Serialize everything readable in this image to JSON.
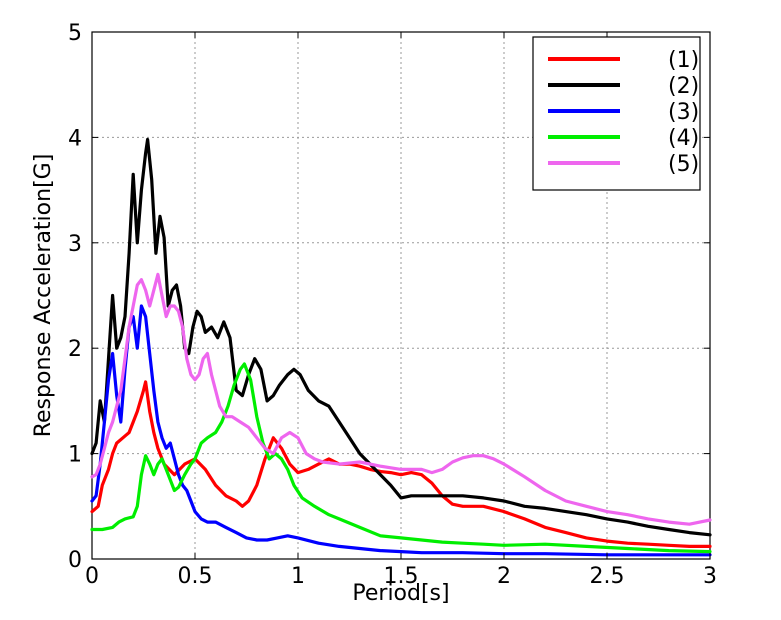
{
  "chart_data": {
    "type": "line",
    "title": "",
    "xlabel": "Period[s]",
    "ylabel": "Response Acceleration[G]",
    "xlim": [
      0,
      3
    ],
    "ylim": [
      0,
      5
    ],
    "xticks": [
      0,
      0.5,
      1,
      1.5,
      2,
      2.5,
      3
    ],
    "xtick_labels": [
      "0",
      "0.5",
      "1",
      "1.5",
      "2",
      "2.5",
      "3"
    ],
    "yticks": [
      0,
      1,
      2,
      3,
      4,
      5
    ],
    "ytick_labels": [
      "0",
      "1",
      "2",
      "3",
      "4",
      "5"
    ],
    "grid": true,
    "legend_position": "top-right",
    "series": [
      {
        "name": "(1)",
        "color": "#ff0000",
        "points": [
          [
            0,
            0.45
          ],
          [
            0.03,
            0.5
          ],
          [
            0.05,
            0.7
          ],
          [
            0.08,
            0.85
          ],
          [
            0.1,
            1.0
          ],
          [
            0.12,
            1.1
          ],
          [
            0.15,
            1.15
          ],
          [
            0.18,
            1.2
          ],
          [
            0.2,
            1.3
          ],
          [
            0.22,
            1.4
          ],
          [
            0.25,
            1.6
          ],
          [
            0.26,
            1.68
          ],
          [
            0.28,
            1.4
          ],
          [
            0.3,
            1.2
          ],
          [
            0.32,
            1.05
          ],
          [
            0.35,
            0.9
          ],
          [
            0.4,
            0.8
          ],
          [
            0.45,
            0.9
          ],
          [
            0.5,
            0.95
          ],
          [
            0.55,
            0.85
          ],
          [
            0.6,
            0.7
          ],
          [
            0.65,
            0.6
          ],
          [
            0.7,
            0.55
          ],
          [
            0.73,
            0.5
          ],
          [
            0.76,
            0.55
          ],
          [
            0.8,
            0.7
          ],
          [
            0.84,
            0.95
          ],
          [
            0.88,
            1.15
          ],
          [
            0.92,
            1.05
          ],
          [
            0.96,
            0.9
          ],
          [
            1.0,
            0.82
          ],
          [
            1.05,
            0.85
          ],
          [
            1.1,
            0.9
          ],
          [
            1.15,
            0.95
          ],
          [
            1.2,
            0.9
          ],
          [
            1.25,
            0.9
          ],
          [
            1.3,
            0.88
          ],
          [
            1.35,
            0.85
          ],
          [
            1.4,
            0.83
          ],
          [
            1.45,
            0.82
          ],
          [
            1.5,
            0.8
          ],
          [
            1.55,
            0.82
          ],
          [
            1.6,
            0.8
          ],
          [
            1.65,
            0.72
          ],
          [
            1.7,
            0.6
          ],
          [
            1.75,
            0.52
          ],
          [
            1.8,
            0.5
          ],
          [
            1.9,
            0.5
          ],
          [
            2.0,
            0.45
          ],
          [
            2.1,
            0.38
          ],
          [
            2.2,
            0.3
          ],
          [
            2.3,
            0.25
          ],
          [
            2.4,
            0.2
          ],
          [
            2.5,
            0.17
          ],
          [
            2.6,
            0.15
          ],
          [
            2.7,
            0.14
          ],
          [
            2.8,
            0.13
          ],
          [
            2.9,
            0.12
          ],
          [
            3.0,
            0.12
          ]
        ]
      },
      {
        "name": "(2)",
        "color": "#000000",
        "points": [
          [
            0,
            1.0
          ],
          [
            0.02,
            1.1
          ],
          [
            0.04,
            1.5
          ],
          [
            0.06,
            1.3
          ],
          [
            0.08,
            1.9
          ],
          [
            0.1,
            2.5
          ],
          [
            0.12,
            2.0
          ],
          [
            0.14,
            2.1
          ],
          [
            0.16,
            2.3
          ],
          [
            0.18,
            2.9
          ],
          [
            0.2,
            3.65
          ],
          [
            0.22,
            3.0
          ],
          [
            0.24,
            3.5
          ],
          [
            0.26,
            3.85
          ],
          [
            0.27,
            3.98
          ],
          [
            0.29,
            3.6
          ],
          [
            0.31,
            2.9
          ],
          [
            0.33,
            3.25
          ],
          [
            0.35,
            3.05
          ],
          [
            0.37,
            2.4
          ],
          [
            0.39,
            2.55
          ],
          [
            0.41,
            2.6
          ],
          [
            0.43,
            2.4
          ],
          [
            0.45,
            2.0
          ],
          [
            0.47,
            1.95
          ],
          [
            0.49,
            2.2
          ],
          [
            0.51,
            2.35
          ],
          [
            0.53,
            2.3
          ],
          [
            0.55,
            2.15
          ],
          [
            0.58,
            2.2
          ],
          [
            0.61,
            2.1
          ],
          [
            0.64,
            2.25
          ],
          [
            0.67,
            2.1
          ],
          [
            0.7,
            1.6
          ],
          [
            0.73,
            1.55
          ],
          [
            0.76,
            1.75
          ],
          [
            0.79,
            1.9
          ],
          [
            0.82,
            1.8
          ],
          [
            0.85,
            1.5
          ],
          [
            0.88,
            1.55
          ],
          [
            0.91,
            1.65
          ],
          [
            0.95,
            1.75
          ],
          [
            0.98,
            1.8
          ],
          [
            1.01,
            1.75
          ],
          [
            1.05,
            1.6
          ],
          [
            1.1,
            1.5
          ],
          [
            1.15,
            1.45
          ],
          [
            1.2,
            1.3
          ],
          [
            1.25,
            1.15
          ],
          [
            1.3,
            1.0
          ],
          [
            1.35,
            0.9
          ],
          [
            1.4,
            0.8
          ],
          [
            1.45,
            0.7
          ],
          [
            1.5,
            0.58
          ],
          [
            1.55,
            0.6
          ],
          [
            1.6,
            0.6
          ],
          [
            1.7,
            0.6
          ],
          [
            1.8,
            0.6
          ],
          [
            1.9,
            0.58
          ],
          [
            2.0,
            0.55
          ],
          [
            2.1,
            0.5
          ],
          [
            2.2,
            0.48
          ],
          [
            2.3,
            0.45
          ],
          [
            2.4,
            0.42
          ],
          [
            2.5,
            0.38
          ],
          [
            2.6,
            0.35
          ],
          [
            2.7,
            0.31
          ],
          [
            2.8,
            0.28
          ],
          [
            2.9,
            0.25
          ],
          [
            3.0,
            0.23
          ]
        ]
      },
      {
        "name": "(3)",
        "color": "#0000ff",
        "points": [
          [
            0,
            0.55
          ],
          [
            0.02,
            0.6
          ],
          [
            0.04,
            0.9
          ],
          [
            0.06,
            1.3
          ],
          [
            0.08,
            1.7
          ],
          [
            0.1,
            1.95
          ],
          [
            0.12,
            1.55
          ],
          [
            0.14,
            1.3
          ],
          [
            0.16,
            1.8
          ],
          [
            0.18,
            2.2
          ],
          [
            0.2,
            2.3
          ],
          [
            0.22,
            2.0
          ],
          [
            0.24,
            2.4
          ],
          [
            0.26,
            2.3
          ],
          [
            0.28,
            1.95
          ],
          [
            0.3,
            1.6
          ],
          [
            0.32,
            1.3
          ],
          [
            0.34,
            1.15
          ],
          [
            0.36,
            1.05
          ],
          [
            0.38,
            1.1
          ],
          [
            0.4,
            0.95
          ],
          [
            0.42,
            0.8
          ],
          [
            0.44,
            0.7
          ],
          [
            0.46,
            0.65
          ],
          [
            0.48,
            0.55
          ],
          [
            0.5,
            0.45
          ],
          [
            0.53,
            0.38
          ],
          [
            0.56,
            0.35
          ],
          [
            0.6,
            0.35
          ],
          [
            0.65,
            0.3
          ],
          [
            0.7,
            0.25
          ],
          [
            0.75,
            0.2
          ],
          [
            0.8,
            0.18
          ],
          [
            0.85,
            0.18
          ],
          [
            0.9,
            0.2
          ],
          [
            0.95,
            0.22
          ],
          [
            1.0,
            0.2
          ],
          [
            1.1,
            0.15
          ],
          [
            1.2,
            0.12
          ],
          [
            1.3,
            0.1
          ],
          [
            1.4,
            0.08
          ],
          [
            1.5,
            0.07
          ],
          [
            1.6,
            0.06
          ],
          [
            1.8,
            0.06
          ],
          [
            2.0,
            0.05
          ],
          [
            2.2,
            0.05
          ],
          [
            2.5,
            0.04
          ],
          [
            2.8,
            0.04
          ],
          [
            3.0,
            0.04
          ]
        ]
      },
      {
        "name": "(4)",
        "color": "#00ee00",
        "points": [
          [
            0,
            0.28
          ],
          [
            0.05,
            0.28
          ],
          [
            0.1,
            0.3
          ],
          [
            0.13,
            0.35
          ],
          [
            0.16,
            0.38
          ],
          [
            0.2,
            0.4
          ],
          [
            0.22,
            0.5
          ],
          [
            0.24,
            0.8
          ],
          [
            0.26,
            0.98
          ],
          [
            0.28,
            0.9
          ],
          [
            0.3,
            0.8
          ],
          [
            0.32,
            0.9
          ],
          [
            0.34,
            0.95
          ],
          [
            0.36,
            0.85
          ],
          [
            0.38,
            0.75
          ],
          [
            0.4,
            0.65
          ],
          [
            0.42,
            0.68
          ],
          [
            0.45,
            0.8
          ],
          [
            0.48,
            0.9
          ],
          [
            0.5,
            0.95
          ],
          [
            0.53,
            1.1
          ],
          [
            0.56,
            1.15
          ],
          [
            0.6,
            1.2
          ],
          [
            0.63,
            1.3
          ],
          [
            0.66,
            1.45
          ],
          [
            0.69,
            1.65
          ],
          [
            0.72,
            1.8
          ],
          [
            0.74,
            1.85
          ],
          [
            0.77,
            1.7
          ],
          [
            0.8,
            1.35
          ],
          [
            0.83,
            1.1
          ],
          [
            0.86,
            0.95
          ],
          [
            0.89,
            1.0
          ],
          [
            0.92,
            0.95
          ],
          [
            0.95,
            0.85
          ],
          [
            0.98,
            0.7
          ],
          [
            1.02,
            0.58
          ],
          [
            1.08,
            0.5
          ],
          [
            1.15,
            0.42
          ],
          [
            1.2,
            0.38
          ],
          [
            1.3,
            0.3
          ],
          [
            1.4,
            0.22
          ],
          [
            1.5,
            0.2
          ],
          [
            1.6,
            0.18
          ],
          [
            1.7,
            0.16
          ],
          [
            1.8,
            0.15
          ],
          [
            1.9,
            0.14
          ],
          [
            2.0,
            0.13
          ],
          [
            2.2,
            0.14
          ],
          [
            2.4,
            0.12
          ],
          [
            2.6,
            0.1
          ],
          [
            2.8,
            0.08
          ],
          [
            3.0,
            0.07
          ]
        ]
      },
      {
        "name": "(5)",
        "color": "#ee66ee",
        "points": [
          [
            0,
            0.78
          ],
          [
            0.02,
            0.8
          ],
          [
            0.04,
            0.9
          ],
          [
            0.06,
            1.05
          ],
          [
            0.08,
            1.2
          ],
          [
            0.1,
            1.3
          ],
          [
            0.12,
            1.45
          ],
          [
            0.14,
            1.6
          ],
          [
            0.16,
            1.9
          ],
          [
            0.18,
            2.2
          ],
          [
            0.2,
            2.4
          ],
          [
            0.22,
            2.6
          ],
          [
            0.24,
            2.65
          ],
          [
            0.26,
            2.55
          ],
          [
            0.28,
            2.4
          ],
          [
            0.3,
            2.55
          ],
          [
            0.32,
            2.7
          ],
          [
            0.34,
            2.5
          ],
          [
            0.36,
            2.3
          ],
          [
            0.38,
            2.4
          ],
          [
            0.4,
            2.4
          ],
          [
            0.42,
            2.35
          ],
          [
            0.44,
            2.2
          ],
          [
            0.46,
            1.9
          ],
          [
            0.48,
            1.75
          ],
          [
            0.5,
            1.7
          ],
          [
            0.52,
            1.75
          ],
          [
            0.54,
            1.9
          ],
          [
            0.56,
            1.95
          ],
          [
            0.58,
            1.75
          ],
          [
            0.6,
            1.6
          ],
          [
            0.62,
            1.45
          ],
          [
            0.65,
            1.35
          ],
          [
            0.68,
            1.35
          ],
          [
            0.72,
            1.3
          ],
          [
            0.76,
            1.25
          ],
          [
            0.8,
            1.15
          ],
          [
            0.84,
            1.05
          ],
          [
            0.88,
            1.0
          ],
          [
            0.92,
            1.15
          ],
          [
            0.96,
            1.2
          ],
          [
            1.0,
            1.15
          ],
          [
            1.04,
            1.0
          ],
          [
            1.08,
            0.95
          ],
          [
            1.12,
            0.92
          ],
          [
            1.2,
            0.9
          ],
          [
            1.3,
            0.92
          ],
          [
            1.4,
            0.88
          ],
          [
            1.5,
            0.85
          ],
          [
            1.6,
            0.85
          ],
          [
            1.65,
            0.82
          ],
          [
            1.7,
            0.85
          ],
          [
            1.75,
            0.92
          ],
          [
            1.8,
            0.96
          ],
          [
            1.85,
            0.98
          ],
          [
            1.9,
            0.98
          ],
          [
            1.95,
            0.95
          ],
          [
            2.0,
            0.9
          ],
          [
            2.1,
            0.78
          ],
          [
            2.2,
            0.65
          ],
          [
            2.3,
            0.55
          ],
          [
            2.4,
            0.5
          ],
          [
            2.5,
            0.45
          ],
          [
            2.6,
            0.42
          ],
          [
            2.7,
            0.38
          ],
          [
            2.8,
            0.35
          ],
          [
            2.9,
            0.33
          ],
          [
            3.0,
            0.37
          ]
        ]
      }
    ]
  }
}
